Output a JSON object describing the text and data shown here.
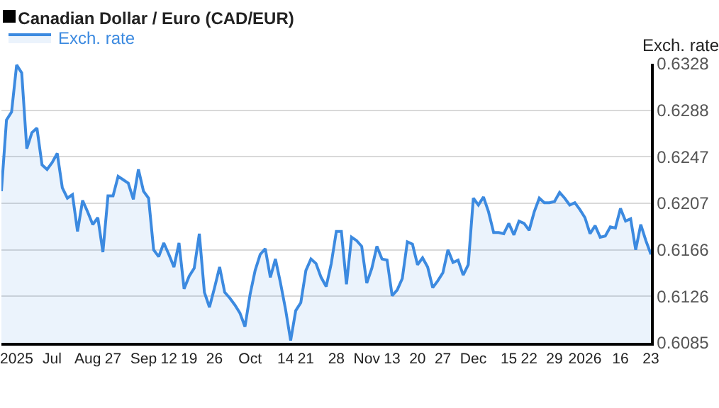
{
  "chart_data": {
    "type": "area",
    "title": "Canadian Dollar / Euro (CAD/EUR)",
    "ylabel": "Exch. rate",
    "categories": [
      null,
      null,
      null,
      "2025",
      null,
      null,
      null,
      null,
      null,
      null,
      "Jul",
      null,
      null,
      null,
      null,
      null,
      null,
      "Aug",
      null,
      null,
      null,
      null,
      "27",
      null,
      null,
      null,
      null,
      null,
      "Sep",
      null,
      null,
      null,
      null,
      "12",
      null,
      null,
      null,
      "19",
      null,
      null,
      null,
      null,
      "26",
      null,
      null,
      null,
      null,
      null,
      null,
      "Oct",
      null,
      null,
      null,
      null,
      null,
      null,
      "14",
      null,
      null,
      null,
      "21",
      null,
      null,
      null,
      null,
      null,
      "28",
      null,
      null,
      null,
      null,
      null,
      "Nov",
      null,
      null,
      null,
      null,
      "13",
      null,
      null,
      null,
      null,
      "20",
      null,
      null,
      null,
      null,
      "27",
      null,
      null,
      null,
      null,
      null,
      "Dec",
      null,
      null,
      null,
      null,
      null,
      null,
      "15",
      null,
      null,
      null,
      "22",
      null,
      null,
      null,
      null,
      "29",
      null,
      null,
      null,
      null,
      null,
      "2026",
      null,
      null,
      null,
      null,
      null,
      null,
      "16",
      null,
      null,
      null,
      null,
      null,
      "23"
    ],
    "series": [
      {
        "name": "Exch. rate",
        "color": "#3c8ae0",
        "values": [
          0.6217,
          0.6279,
          0.6286,
          0.6327,
          0.632,
          0.6254,
          0.6268,
          0.6272,
          0.624,
          0.6236,
          0.6242,
          0.625,
          0.622,
          0.6211,
          0.6214,
          0.6182,
          0.6209,
          0.6199,
          0.6188,
          0.6194,
          0.6164,
          0.6213,
          0.6213,
          0.623,
          0.6227,
          0.6224,
          0.621,
          0.6236,
          0.6217,
          0.6211,
          0.6166,
          0.616,
          0.6172,
          0.6162,
          0.6151,
          0.6172,
          0.6132,
          0.6143,
          0.615,
          0.618,
          0.6129,
          0.6116,
          0.6133,
          0.6151,
          0.6129,
          0.6124,
          0.6118,
          0.6111,
          0.6099,
          0.6127,
          0.6148,
          0.6162,
          0.6167,
          0.6142,
          0.6158,
          0.6137,
          0.6114,
          0.6087,
          0.6113,
          0.612,
          0.6148,
          0.6158,
          0.6154,
          0.6142,
          0.6134,
          0.6154,
          0.6182,
          0.6182,
          0.6136,
          0.6177,
          0.6174,
          0.6169,
          0.6137,
          0.615,
          0.6169,
          0.6158,
          0.6157,
          0.6126,
          0.6131,
          0.6141,
          0.6173,
          0.6171,
          0.6153,
          0.6159,
          0.6151,
          0.6133,
          0.6139,
          0.6146,
          0.6166,
          0.6155,
          0.6157,
          0.6144,
          0.6153,
          0.6211,
          0.6205,
          0.6212,
          0.6199,
          0.6181,
          0.6181,
          0.618,
          0.6189,
          0.6179,
          0.6191,
          0.6189,
          0.6183,
          0.6199,
          0.6211,
          0.6207,
          0.6207,
          0.6208,
          0.6216,
          0.6211,
          0.6205,
          0.6207,
          0.6201,
          0.6194,
          0.618,
          0.6187,
          0.6177,
          0.6178,
          0.6186,
          0.6185,
          0.6202,
          0.6191,
          0.6193,
          0.6166,
          0.6188,
          0.6174,
          0.6162
        ]
      }
    ],
    "ylim": [
      0.6085,
      0.6328
    ],
    "yticks": [
      0.6085,
      {
        "value": 0.61255,
        "label": "0.6126"
      },
      0.6166,
      {
        "value": 0.62065,
        "label": "0.6207"
      },
      0.6247,
      {
        "value": 0.62875,
        "label": "0.6288"
      },
      0.6328
    ],
    "grid": "y",
    "legend": "top left",
    "marker": "none",
    "line_style": "solid"
  }
}
